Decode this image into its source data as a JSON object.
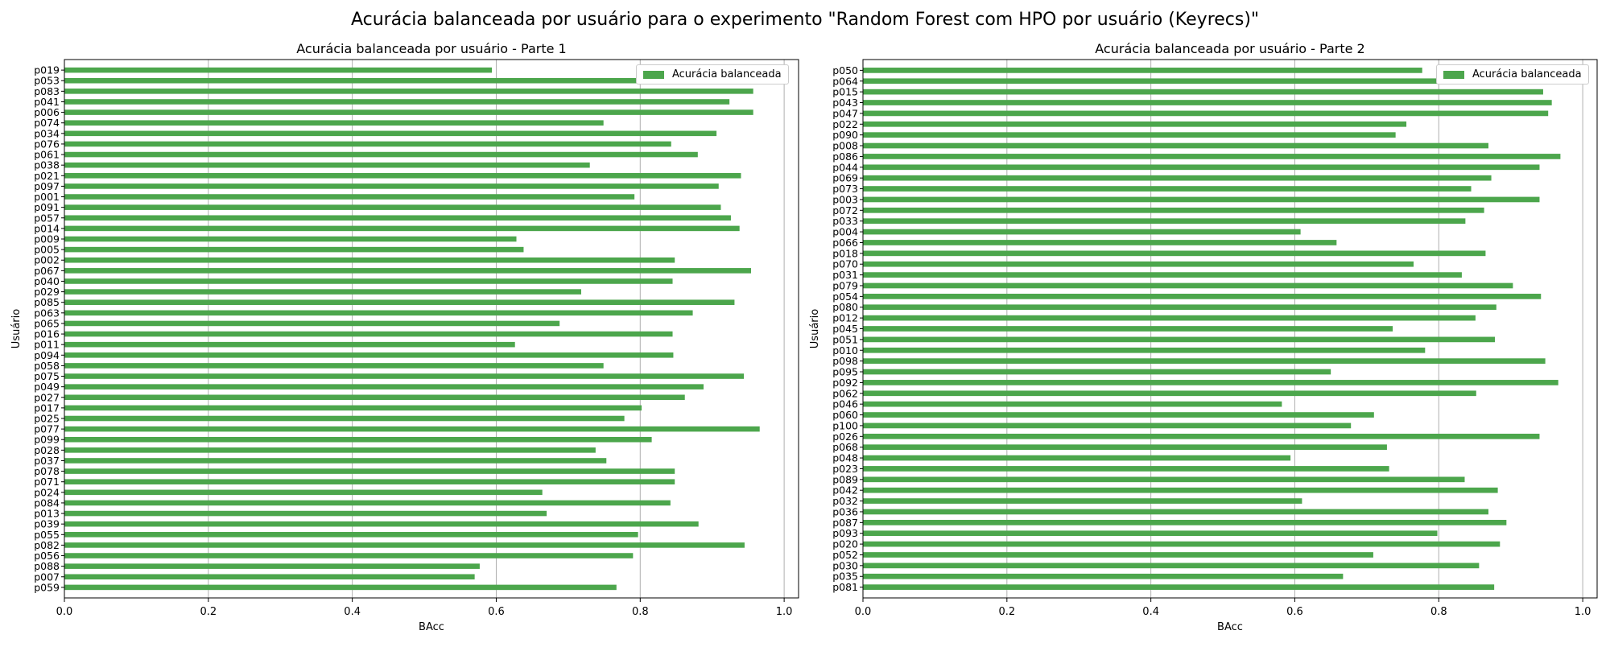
{
  "title": "Acurácia balanceada por usuário para o experimento \"Random Forest com HPO por usuário (Keyrecs)\"",
  "colors": {
    "bar": "#4ca64c",
    "grid": "#b0b0b0"
  },
  "chart_data": [
    {
      "type": "bar",
      "orientation": "horizontal",
      "title": "Acurácia balanceada por usuário - Parte 1",
      "xlabel": "BAcc",
      "ylabel": "Usuário",
      "xlim": [
        0,
        1.02
      ],
      "xticks": [
        "0.0",
        "0.2",
        "0.4",
        "0.6",
        "0.8",
        "1.0"
      ],
      "grid": "x",
      "legend": {
        "label": "Acurácia balanceada",
        "position": "top-right"
      },
      "categories": [
        "p059",
        "p007",
        "p088",
        "p056",
        "p082",
        "p055",
        "p039",
        "p013",
        "p084",
        "p024",
        "p071",
        "p078",
        "p037",
        "p028",
        "p099",
        "p077",
        "p025",
        "p017",
        "p027",
        "p049",
        "p075",
        "p058",
        "p094",
        "p011",
        "p016",
        "p065",
        "p063",
        "p085",
        "p029",
        "p040",
        "p067",
        "p002",
        "p005",
        "p009",
        "p014",
        "p057",
        "p091",
        "p001",
        "p097",
        "p021",
        "p038",
        "p061",
        "p076",
        "p034",
        "p074",
        "p006",
        "p041",
        "p083",
        "p053",
        "p019"
      ],
      "values": [
        0.767,
        0.57,
        0.577,
        0.79,
        0.945,
        0.797,
        0.881,
        0.67,
        0.842,
        0.664,
        0.848,
        0.848,
        0.753,
        0.738,
        0.816,
        0.966,
        0.778,
        0.802,
        0.862,
        0.888,
        0.944,
        0.749,
        0.846,
        0.626,
        0.845,
        0.688,
        0.873,
        0.931,
        0.718,
        0.845,
        0.954,
        0.848,
        0.638,
        0.628,
        0.938,
        0.926,
        0.912,
        0.792,
        0.909,
        0.94,
        0.73,
        0.88,
        0.843,
        0.906,
        0.749,
        0.957,
        0.924,
        0.957,
        0.86,
        0.594
      ]
    },
    {
      "type": "bar",
      "orientation": "horizontal",
      "title": "Acurácia balanceada por usuário - Parte 2",
      "xlabel": "BAcc",
      "ylabel": "Usuário",
      "xlim": [
        0,
        1.02
      ],
      "xticks": [
        "0.0",
        "0.2",
        "0.4",
        "0.6",
        "0.8",
        "1.0"
      ],
      "grid": "x",
      "legend": {
        "label": "Acurácia balanceada",
        "position": "top-right"
      },
      "categories": [
        "p081",
        "p035",
        "p030",
        "p052",
        "p020",
        "p093",
        "p087",
        "p036",
        "p032",
        "p042",
        "p089",
        "p023",
        "p048",
        "p068",
        "p026",
        "p100",
        "p060",
        "p046",
        "p062",
        "p092",
        "p095",
        "p098",
        "p010",
        "p051",
        "p045",
        "p012",
        "p080",
        "p054",
        "p079",
        "p031",
        "p070",
        "p018",
        "p066",
        "p004",
        "p033",
        "p072",
        "p003",
        "p073",
        "p069",
        "p044",
        "p086",
        "p008",
        "p090",
        "p022",
        "p047",
        "p043",
        "p015",
        "p064",
        "p050"
      ],
      "values": [
        0.877,
        0.667,
        0.856,
        0.709,
        0.885,
        0.798,
        0.894,
        0.869,
        0.61,
        0.882,
        0.836,
        0.731,
        0.594,
        0.728,
        0.94,
        0.678,
        0.71,
        0.582,
        0.852,
        0.966,
        0.65,
        0.948,
        0.781,
        0.878,
        0.736,
        0.851,
        0.88,
        0.942,
        0.903,
        0.832,
        0.765,
        0.865,
        0.658,
        0.608,
        0.837,
        0.863,
        0.94,
        0.845,
        0.873,
        0.94,
        0.969,
        0.869,
        0.74,
        0.755,
        0.952,
        0.957,
        0.945,
        0.932,
        0.777
      ]
    }
  ]
}
